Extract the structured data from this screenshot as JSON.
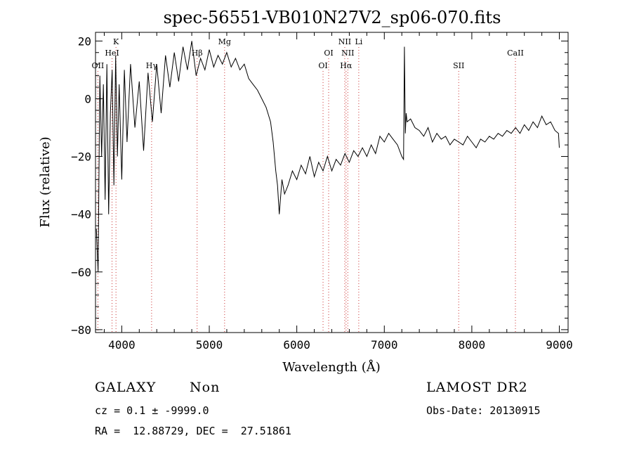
{
  "chart_data": {
    "type": "line",
    "title": "spec-56551-VB010N27V2_sp06-070.fits",
    "xlabel": "Wavelength (Å)",
    "ylabel": "Flux (relative)",
    "xlim": [
      3700,
      9100
    ],
    "ylim": [
      -81,
      23
    ],
    "xticks": [
      4000,
      5000,
      6000,
      7000,
      8000,
      9000
    ],
    "yticks": [
      20,
      0,
      -20,
      -40,
      -60,
      -80
    ],
    "xtick_labels": [
      "4000",
      "5000",
      "6000",
      "7000",
      "8000",
      "9000"
    ],
    "ytick_labels": [
      "20",
      "0",
      "−20",
      "−40",
      "−60",
      "−80"
    ],
    "grid": false,
    "line_color": "#000000",
    "marker_color": "#cc3333",
    "series": [
      {
        "x": [
          3710,
          3730,
          3750,
          3770,
          3790,
          3810,
          3830,
          3850,
          3870,
          3890,
          3910,
          3930,
          3950,
          3970,
          4000,
          4030,
          4060,
          4100,
          4150,
          4200,
          4250,
          4300,
          4350,
          4400,
          4450,
          4500,
          4550,
          4600,
          4650,
          4700,
          4750,
          4800,
          4850,
          4900,
          4950,
          5000,
          5050,
          5100,
          5150,
          5200,
          5250,
          5300,
          5350,
          5400,
          5450,
          5500,
          5550,
          5600,
          5650,
          5700,
          5730,
          5760,
          5780,
          5800,
          5830,
          5860,
          5900,
          5950,
          6000,
          6050,
          6100,
          6150,
          6200,
          6250,
          6300,
          6350,
          6400,
          6450,
          6500,
          6550,
          6600,
          6650,
          6700,
          6750,
          6800,
          6850,
          6900,
          6950,
          7000,
          7050,
          7100,
          7150,
          7200,
          7220,
          7230,
          7240,
          7250,
          7260,
          7300,
          7350,
          7400,
          7450,
          7500,
          7550,
          7600,
          7650,
          7700,
          7750,
          7800,
          7850,
          7900,
          7950,
          8000,
          8050,
          8100,
          8150,
          8200,
          8250,
          8300,
          8350,
          8400,
          8450,
          8500,
          8550,
          8600,
          8650,
          8700,
          8750,
          8800,
          8850,
          8900,
          8950,
          8990,
          9000
        ],
        "y": [
          -45,
          -60,
          8,
          -20,
          5,
          -35,
          12,
          -40,
          -5,
          10,
          -30,
          15,
          -20,
          5,
          -28,
          10,
          -15,
          12,
          -10,
          6,
          -18,
          9,
          -8,
          12,
          -5,
          15,
          4,
          16,
          6,
          18,
          10,
          20,
          8,
          14,
          10,
          17,
          11,
          15,
          12,
          16,
          11,
          14,
          10,
          12,
          7,
          5,
          3,
          0,
          -3,
          -8,
          -15,
          -25,
          -30,
          -40,
          -28,
          -33,
          -30,
          -25,
          -28,
          -23,
          -26,
          -20,
          -27,
          -22,
          -25,
          -20,
          -25,
          -21,
          -23,
          -19,
          -22,
          -18,
          -20,
          -17,
          -20,
          -16,
          -19,
          -13,
          -15,
          -12,
          -14,
          -16,
          -20,
          -21,
          18,
          -12,
          -5,
          -8,
          -7,
          -10,
          -11,
          -13,
          -10,
          -15,
          -12,
          -14,
          -13,
          -16,
          -14,
          -15,
          -16,
          -13,
          -15,
          -17,
          -14,
          -15,
          -13,
          -14,
          -12,
          -13,
          -11,
          -12,
          -10,
          -12,
          -9,
          -11,
          -8,
          -10,
          -6,
          -9,
          -8,
          -11,
          -12,
          -17
        ]
      }
    ],
    "lines": [
      {
        "name": "OII",
        "x": 3727,
        "row": 3
      },
      {
        "name": "K",
        "x": 3934,
        "row": 1
      },
      {
        "name": "HeI",
        "x": 3889,
        "row": 2
      },
      {
        "name": "Hγ",
        "x": 4341,
        "row": 3
      },
      {
        "name": "Hβ",
        "x": 4861,
        "row": 2
      },
      {
        "name": "Mg",
        "x": 5175,
        "row": 1
      },
      {
        "name": "OI",
        "x": 6364,
        "row": 2
      },
      {
        "name": "OI",
        "x": 6300,
        "row": 3
      },
      {
        "name": "NII",
        "x": 6548,
        "row": 1
      },
      {
        "name": "Li",
        "x": 6708,
        "row": 1
      },
      {
        "name": "NII",
        "x": 6583,
        "row": 2
      },
      {
        "name": "Hα",
        "x": 6563,
        "row": 3
      },
      {
        "name": "SII",
        "x": 7850,
        "row": 3
      },
      {
        "name": "CaII",
        "x": 8498,
        "row": 2
      }
    ]
  },
  "info": {
    "class_label": "GALAXY",
    "subclass_label": "Non",
    "survey_label": "LAMOST DR2",
    "cz_text": "cz = 0.1 ± -9999.0",
    "obs_date_text": "Obs-Date: 20130915",
    "radec_text": "RA =  12.88729, DEC =  27.51861"
  }
}
